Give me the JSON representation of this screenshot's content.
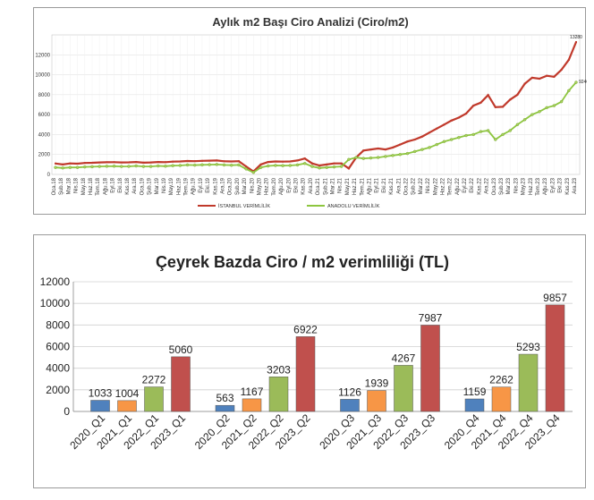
{
  "chart_data": [
    {
      "type": "line",
      "title": "Aylık m2 Başı Ciro Analizi (Ciro/m2)",
      "ylim": [
        0,
        14000
      ],
      "yticks": [
        0,
        2000,
        4000,
        6000,
        8000,
        10000,
        12000
      ],
      "grid": true,
      "legend": "bottom",
      "x": [
        "Oca.18",
        "Şub.18",
        "Mar.18",
        "Nis.18",
        "May.18",
        "Haz.18",
        "Tem.18",
        "Ağu.18",
        "Eyl.18",
        "Eki.18",
        "Kas.18",
        "Ara.18",
        "Oca.19",
        "Şub.19",
        "Mar.19",
        "Nis.19",
        "May.19",
        "Haz.19",
        "Tem.19",
        "Ağu.19",
        "Eyl.19",
        "Eki.19",
        "Kas.19",
        "Ara.19",
        "Oca.20",
        "Şub.20",
        "Mar.20",
        "Nis.20",
        "May.20",
        "Haz.20",
        "Tem.20",
        "Ağu.20",
        "Eyl.20",
        "Eki.20",
        "Kas.20",
        "Ara.20",
        "Oca.21",
        "Şub.21",
        "Mar.21",
        "Nis.21",
        "May.21",
        "Haz.21",
        "Tem.21",
        "Ağu.21",
        "Eyl.21",
        "Eki.21",
        "Kas.21",
        "Ara.21",
        "Oca.22",
        "Şub.22",
        "Mar.22",
        "Nis.22",
        "May.22",
        "Haz.22",
        "Tem.22",
        "Ağu.22",
        "Eyl.22",
        "Eki.22",
        "Kas.22",
        "Ara.22",
        "Oca.23",
        "Şub.23",
        "Mar.23",
        "Nis.23",
        "May.23",
        "Haz.23",
        "Tem.23",
        "Ağu.23",
        "Eyl.23",
        "Eki.23",
        "Kas.23",
        "Ara.23"
      ],
      "series": [
        {
          "name": "İSTANBUL VERİMLİLİK",
          "color": "#c0392b",
          "values": [
            1097,
            1000,
            1100,
            1080,
            1150,
            1170,
            1200,
            1220,
            1230,
            1200,
            1210,
            1250,
            1180,
            1200,
            1250,
            1230,
            1280,
            1300,
            1350,
            1330,
            1360,
            1380,
            1400,
            1320,
            1300,
            1330,
            800,
            300,
            1000,
            1250,
            1300,
            1280,
            1300,
            1400,
            1600,
            1100,
            900,
            1000,
            1100,
            1100,
            600,
            1700,
            2400,
            2500,
            2600,
            2500,
            2700,
            3000,
            3300,
            3500,
            3800,
            4200,
            4600,
            5000,
            5400,
            5700,
            6100,
            6900,
            7200,
            7958,
            6749,
            6784,
            7500,
            8000,
            9100,
            9700,
            9600,
            9900,
            9800,
            10500,
            11500,
            13280
          ]
        },
        {
          "name": "ANADOLU VERİMLİLİK",
          "color": "#8dc63f",
          "values": [
            700,
            650,
            700,
            700,
            750,
            770,
            800,
            820,
            830,
            800,
            810,
            850,
            800,
            800,
            850,
            830,
            880,
            900,
            950,
            930,
            960,
            980,
            1000,
            950,
            920,
            950,
            550,
            200,
            700,
            850,
            900,
            880,
            900,
            950,
            1100,
            800,
            650,
            700,
            750,
            800,
            1500,
            1700,
            1600,
            1650,
            1700,
            1800,
            1900,
            2000,
            2100,
            2300,
            2500,
            2700,
            3000,
            3300,
            3500,
            3700,
            3900,
            4000,
            4300,
            4400,
            3500,
            4000,
            4400,
            5000,
            5500,
            6000,
            6300,
            6700,
            6900,
            7300,
            8400,
            9240
          ]
        }
      ]
    },
    {
      "type": "bar",
      "title": "Çeyrek Bazda Ciro / m2 verimliliği (TL)",
      "ylim": [
        0,
        12000
      ],
      "yticks": [
        0,
        2000,
        4000,
        6000,
        8000,
        10000,
        12000
      ],
      "grid": true,
      "categories": [
        "2020_Q1",
        "2021_Q1",
        "2022_Q1",
        "2023_Q1",
        "2020_Q2",
        "2021_Q2",
        "2022_Q2",
        "2023_Q2",
        "2020_Q3",
        "2021_Q3",
        "2022_Q3",
        "2023_Q3",
        "2020_Q4",
        "2021_Q4",
        "2022_Q4",
        "2023_Q4"
      ],
      "values": [
        1033,
        1004,
        2272,
        5060,
        563,
        1167,
        3203,
        6922,
        1126,
        1939,
        4267,
        7987,
        1159,
        2262,
        5293,
        9857
      ],
      "colors": {
        "2020": "#4f81bd",
        "2021": "#f79646",
        "2022": "#9bbb59",
        "2023": "#c0504d"
      }
    }
  ]
}
